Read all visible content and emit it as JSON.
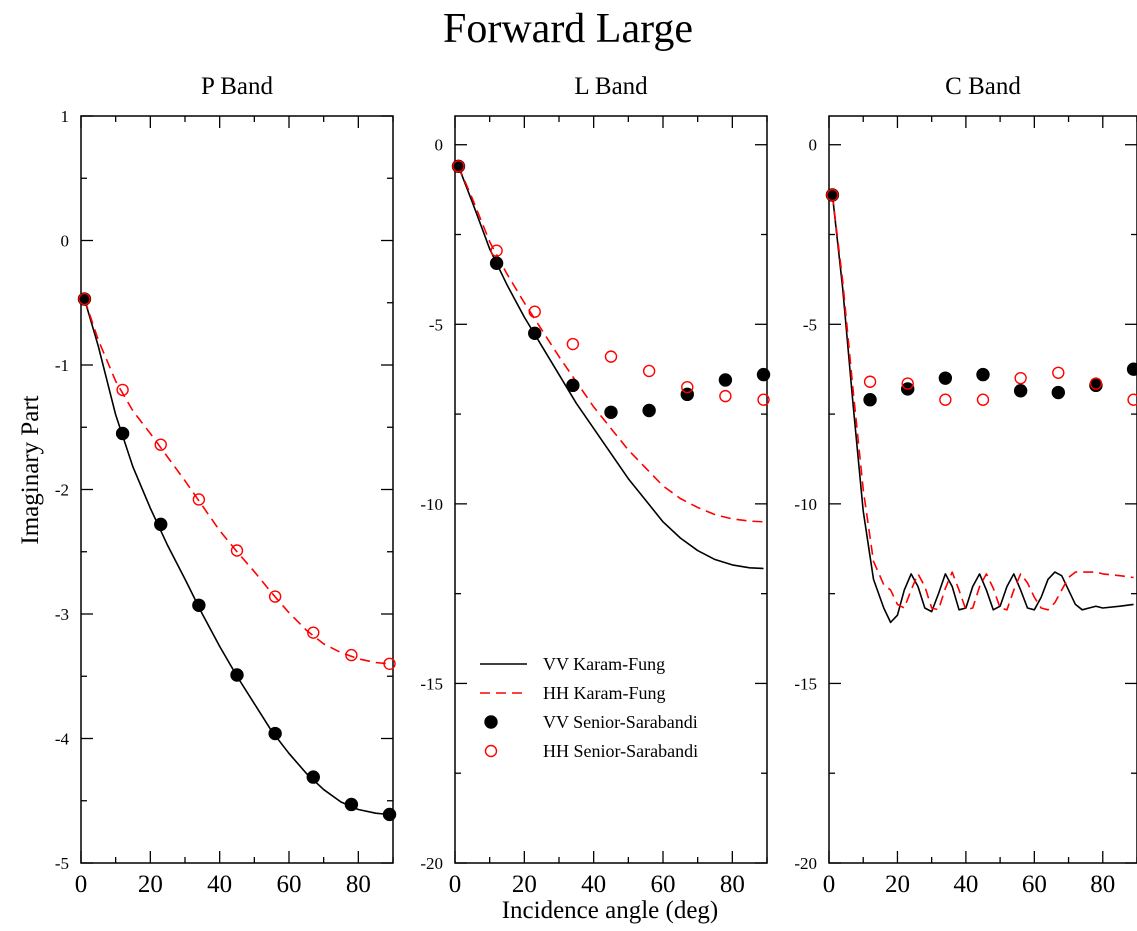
{
  "figure": {
    "title": "Forward Large",
    "xlabel": "Incidence angle (deg)",
    "ylabel": "Imaginary Part"
  },
  "legend": {
    "placement": "L Band panel, lower-middle",
    "entries": [
      {
        "label": "VV Karam-Fung",
        "style": "solid-line",
        "color": "#000000"
      },
      {
        "label": "HH Karam-Fung",
        "style": "dashed-line",
        "color": "#ff0000"
      },
      {
        "label": "VV Senior-Sarabandi",
        "style": "filled-circle",
        "color": "#000000"
      },
      {
        "label": "HH Senior-Sarabandi",
        "style": "open-circle",
        "color": "#ff0000"
      }
    ]
  },
  "chart_data": [
    {
      "type": "line",
      "title": "P Band",
      "xlim": [
        0,
        90
      ],
      "ylim": [
        -5,
        1
      ],
      "xticks": [
        0,
        20,
        40,
        60,
        80
      ],
      "yticks": [
        -5,
        -4,
        -3,
        -2,
        -1,
        0,
        1
      ],
      "grid": false,
      "series": [
        {
          "name": "VV Karam-Fung",
          "kind": "line",
          "x": [
            1,
            5,
            10,
            15,
            20,
            25,
            30,
            35,
            40,
            45,
            50,
            55,
            60,
            65,
            70,
            75,
            80,
            85,
            89
          ],
          "y": [
            -0.47,
            -0.85,
            -1.4,
            -1.82,
            -2.15,
            -2.45,
            -2.72,
            -3.0,
            -3.26,
            -3.5,
            -3.72,
            -3.94,
            -4.12,
            -4.28,
            -4.41,
            -4.51,
            -4.57,
            -4.6,
            -4.61
          ]
        },
        {
          "name": "HH Karam-Fung",
          "kind": "dashed",
          "x": [
            1,
            5,
            10,
            15,
            20,
            25,
            30,
            35,
            40,
            45,
            50,
            55,
            60,
            65,
            70,
            75,
            80,
            85,
            89
          ],
          "y": [
            -0.47,
            -0.8,
            -1.13,
            -1.37,
            -1.55,
            -1.74,
            -1.93,
            -2.13,
            -2.33,
            -2.5,
            -2.66,
            -2.83,
            -2.99,
            -3.13,
            -3.24,
            -3.31,
            -3.36,
            -3.39,
            -3.4
          ]
        },
        {
          "name": "VV Senior-Sarabandi",
          "kind": "filled-circle",
          "x": [
            1,
            12,
            23,
            34,
            45,
            56,
            67,
            78,
            89
          ],
          "y": [
            -0.47,
            -1.55,
            -2.28,
            -2.93,
            -3.49,
            -3.96,
            -4.31,
            -4.53,
            -4.61
          ]
        },
        {
          "name": "HH Senior-Sarabandi",
          "kind": "open-circle",
          "x": [
            1,
            12,
            23,
            34,
            45,
            56,
            67,
            78,
            89
          ],
          "y": [
            -0.47,
            -1.2,
            -1.64,
            -2.08,
            -2.49,
            -2.86,
            -3.15,
            -3.33,
            -3.4
          ]
        }
      ]
    },
    {
      "type": "line",
      "title": "L Band",
      "xlim": [
        0,
        90
      ],
      "ylim": [
        -20,
        0.8
      ],
      "xticks": [
        0,
        20,
        40,
        60,
        80
      ],
      "yticks": [
        -20,
        -15,
        -10,
        -5,
        0
      ],
      "grid": false,
      "series": [
        {
          "name": "VV Karam-Fung",
          "kind": "line",
          "x": [
            1,
            5,
            10,
            15,
            20,
            25,
            30,
            35,
            40,
            45,
            50,
            55,
            60,
            65,
            70,
            75,
            80,
            85,
            89
          ],
          "y": [
            -0.6,
            -1.6,
            -2.9,
            -3.9,
            -4.8,
            -5.6,
            -6.4,
            -7.2,
            -7.9,
            -8.6,
            -9.3,
            -9.9,
            -10.5,
            -10.95,
            -11.3,
            -11.55,
            -11.7,
            -11.78,
            -11.8
          ]
        },
        {
          "name": "HH Karam-Fung",
          "kind": "dashed",
          "x": [
            1,
            5,
            10,
            15,
            20,
            25,
            30,
            35,
            40,
            45,
            50,
            55,
            60,
            65,
            70,
            75,
            80,
            85,
            89
          ],
          "y": [
            -0.6,
            -1.5,
            -2.7,
            -3.6,
            -4.4,
            -5.15,
            -5.9,
            -6.6,
            -7.3,
            -7.9,
            -8.5,
            -9.0,
            -9.5,
            -9.85,
            -10.1,
            -10.3,
            -10.42,
            -10.48,
            -10.5
          ]
        },
        {
          "name": "VV Senior-Sarabandi",
          "kind": "filled-circle",
          "x": [
            1,
            12,
            23,
            34,
            45,
            56,
            67,
            78,
            89
          ],
          "y": [
            -0.6,
            -3.3,
            -5.25,
            -6.7,
            -7.45,
            -7.4,
            -6.95,
            -6.55,
            -6.4
          ]
        },
        {
          "name": "HH Senior-Sarabandi",
          "kind": "open-circle",
          "x": [
            1,
            12,
            23,
            34,
            45,
            56,
            67,
            78,
            89
          ],
          "y": [
            -0.6,
            -2.95,
            -4.65,
            -5.55,
            -5.9,
            -6.3,
            -6.75,
            -7.0,
            -7.1
          ]
        }
      ]
    },
    {
      "type": "line",
      "title": "C Band",
      "xlim": [
        0,
        90
      ],
      "ylim": [
        -20,
        0.8
      ],
      "xticks": [
        0,
        20,
        40,
        60,
        80
      ],
      "yticks": [
        -20,
        -15,
        -10,
        -5,
        0
      ],
      "grid": false,
      "series": [
        {
          "name": "VV Karam-Fung",
          "kind": "line",
          "x": [
            1,
            4,
            7,
            10,
            13,
            16,
            18,
            20,
            22,
            24,
            26,
            28,
            30,
            32,
            34,
            36,
            38,
            40,
            42,
            44,
            46,
            48,
            50,
            52,
            54,
            56,
            58,
            60,
            62,
            64,
            66,
            68,
            70,
            72,
            74,
            76,
            78,
            80,
            85,
            89
          ],
          "y": [
            -1.4,
            -4.0,
            -7.2,
            -10.2,
            -12.1,
            -12.9,
            -13.3,
            -13.1,
            -12.4,
            -11.95,
            -12.3,
            -12.9,
            -13.0,
            -12.5,
            -11.95,
            -12.3,
            -12.95,
            -12.9,
            -12.3,
            -11.95,
            -12.4,
            -12.95,
            -12.85,
            -12.3,
            -11.95,
            -12.4,
            -12.9,
            -12.95,
            -12.6,
            -12.1,
            -11.9,
            -12.0,
            -12.4,
            -12.8,
            -12.95,
            -12.9,
            -12.85,
            -12.9,
            -12.85,
            -12.8
          ]
        },
        {
          "name": "HH Karam-Fung",
          "kind": "dashed",
          "x": [
            1,
            4,
            7,
            10,
            13,
            16,
            18,
            20,
            22,
            24,
            26,
            28,
            30,
            32,
            34,
            36,
            38,
            40,
            42,
            44,
            46,
            48,
            50,
            52,
            54,
            56,
            58,
            60,
            62,
            64,
            66,
            68,
            70,
            72,
            74,
            76,
            78,
            80,
            85,
            89
          ],
          "y": [
            -1.4,
            -3.8,
            -6.8,
            -9.6,
            -11.6,
            -12.25,
            -12.4,
            -12.8,
            -12.9,
            -12.4,
            -11.95,
            -12.3,
            -12.9,
            -12.95,
            -12.35,
            -11.9,
            -12.4,
            -12.95,
            -12.9,
            -12.3,
            -11.95,
            -12.35,
            -12.9,
            -12.95,
            -12.4,
            -11.95,
            -12.2,
            -12.6,
            -12.9,
            -12.95,
            -12.75,
            -12.4,
            -12.05,
            -11.9,
            -11.9,
            -11.9,
            -11.9,
            -11.95,
            -12.0,
            -12.05
          ]
        },
        {
          "name": "VV Senior-Sarabandi",
          "kind": "filled-circle",
          "x": [
            1,
            12,
            23,
            34,
            45,
            56,
            67,
            78,
            89
          ],
          "y": [
            -1.4,
            -7.1,
            -6.8,
            -6.5,
            -6.4,
            -6.85,
            -6.9,
            -6.7,
            -6.25
          ]
        },
        {
          "name": "HH Senior-Sarabandi",
          "kind": "open-circle",
          "x": [
            1,
            12,
            23,
            34,
            45,
            56,
            67,
            78,
            89
          ],
          "y": [
            -1.4,
            -6.6,
            -6.65,
            -7.1,
            -7.1,
            -6.5,
            -6.35,
            -6.65,
            -7.1
          ]
        }
      ]
    }
  ]
}
